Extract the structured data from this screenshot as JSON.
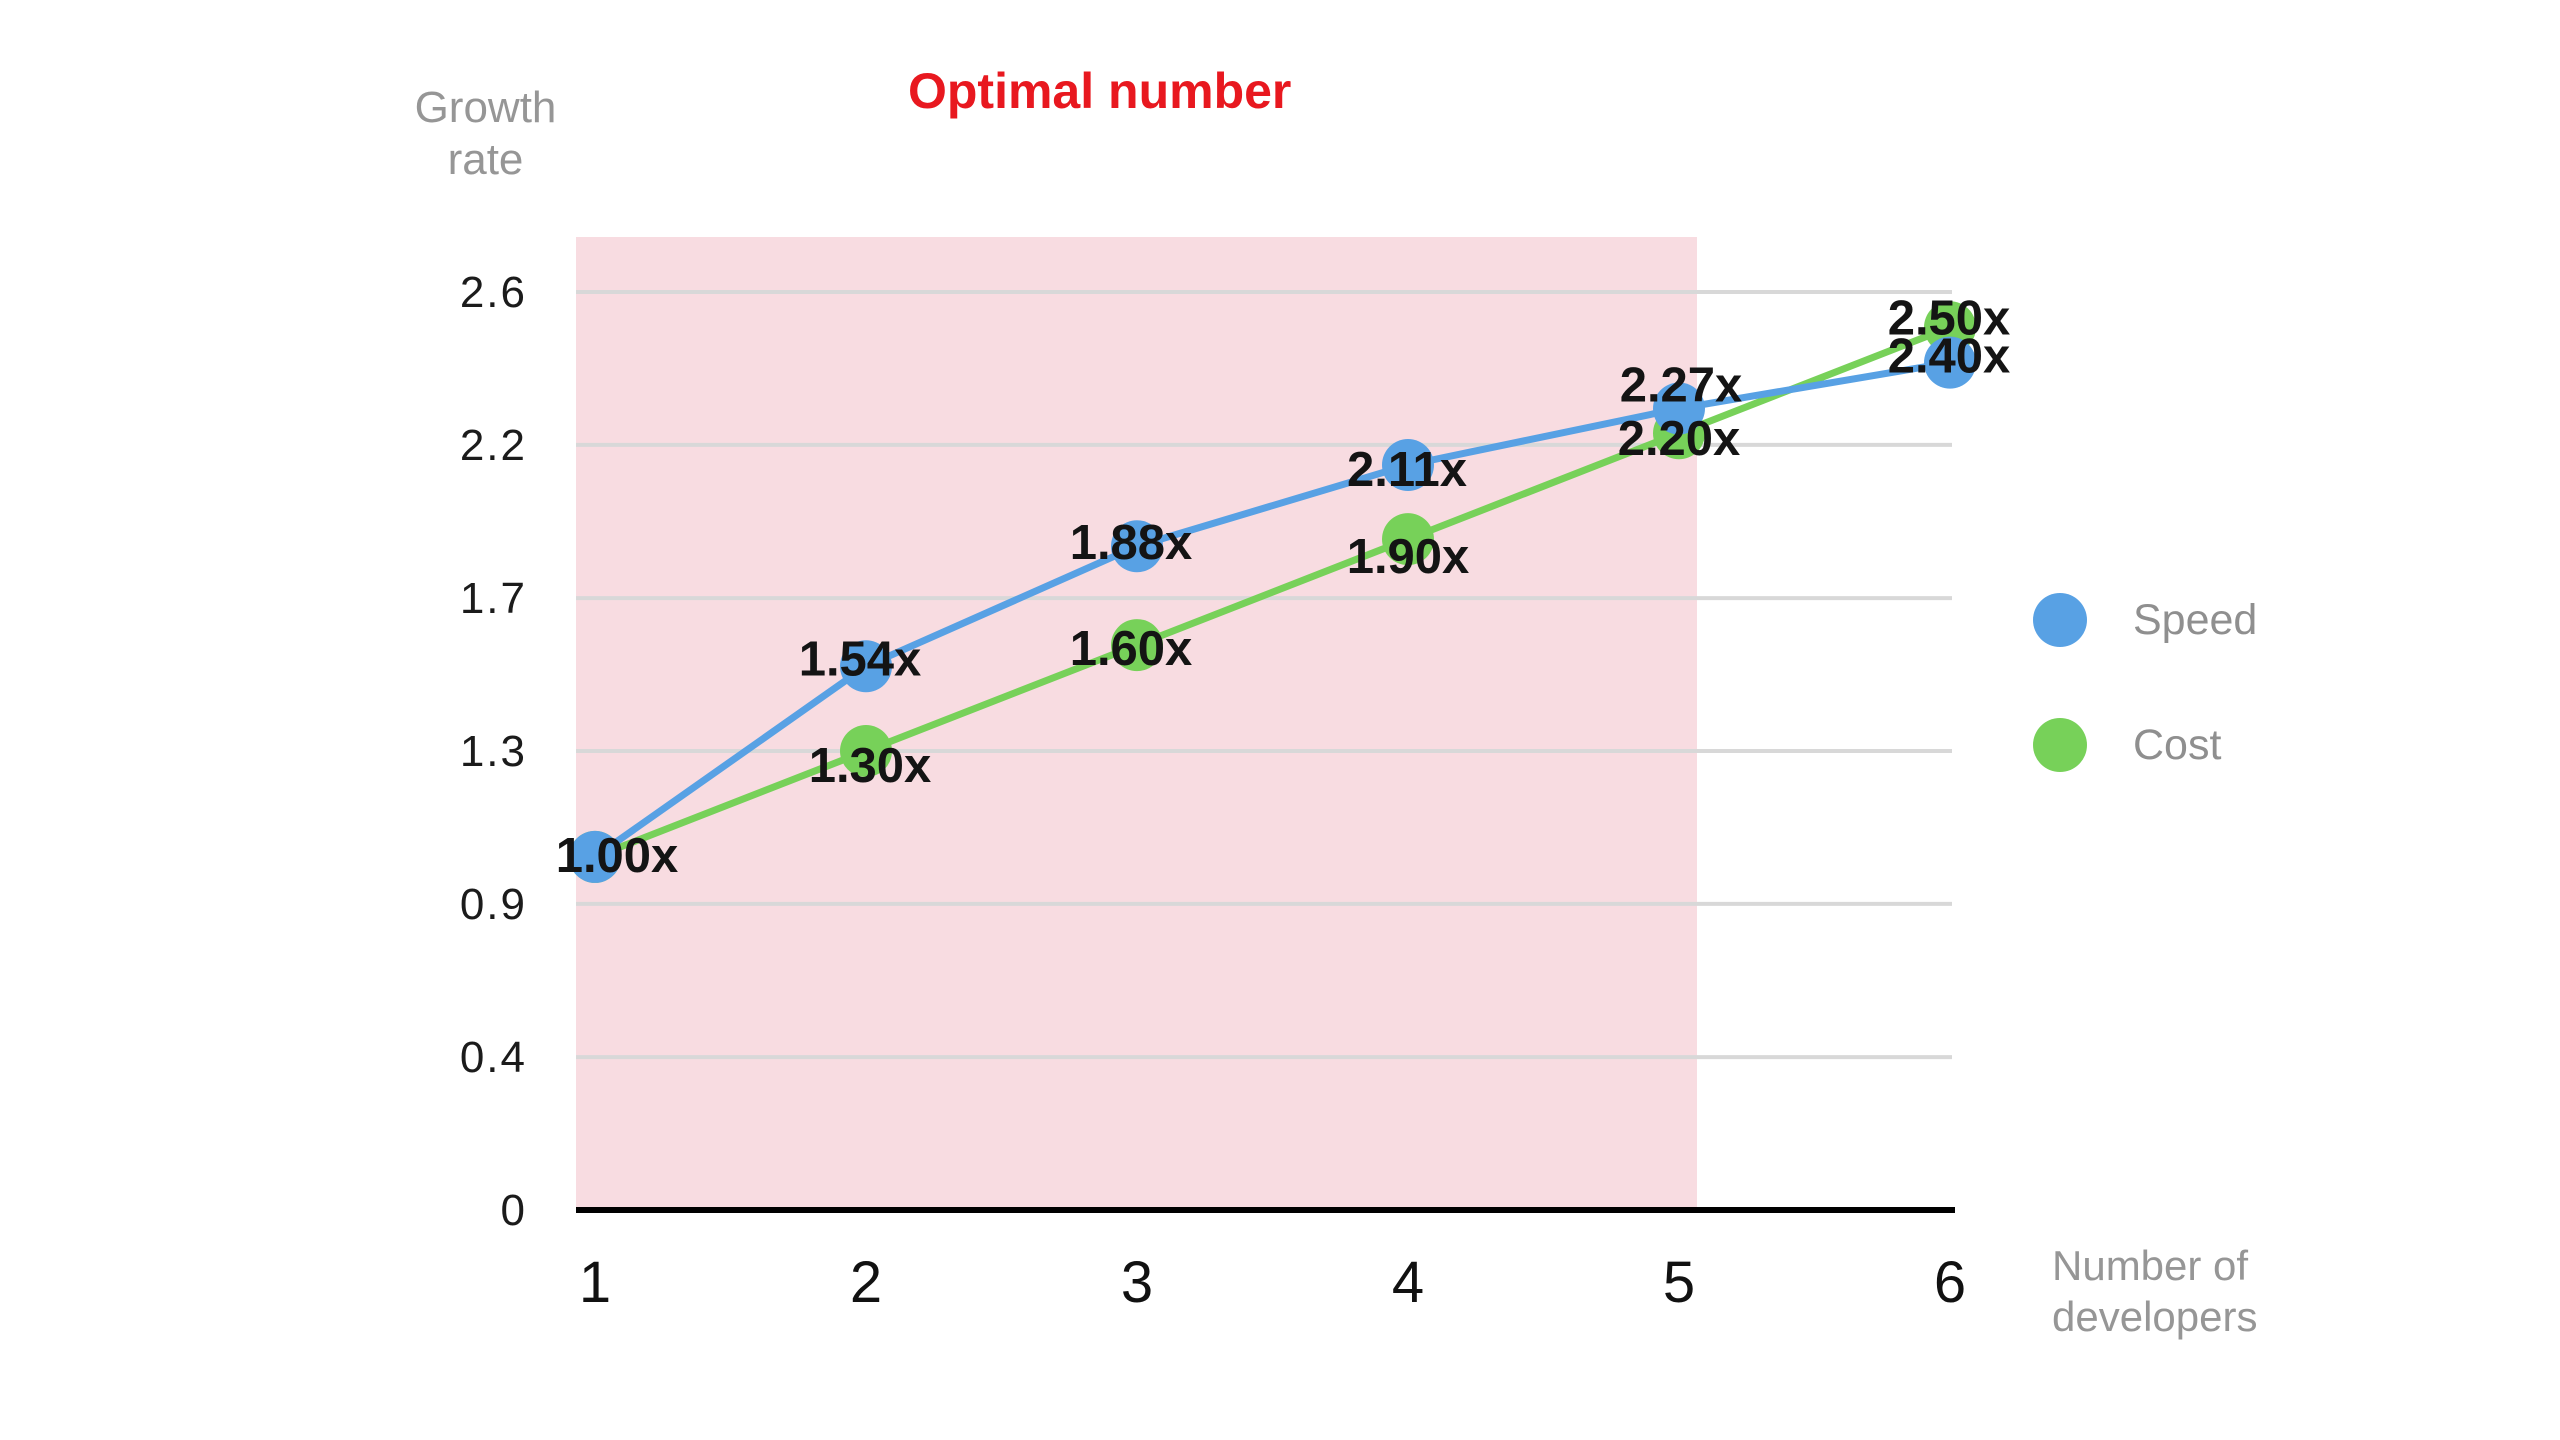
{
  "title": {
    "text": "Optimal number",
    "color": "#e8181f"
  },
  "y_axis_title": {
    "line1": "Growth",
    "line2": "rate"
  },
  "x_axis_title": {
    "line1": "Number of",
    "line2": "developers"
  },
  "legend": [
    {
      "name": "Speed",
      "color": "#58a1e4"
    },
    {
      "name": "Cost",
      "color": "#77d159"
    }
  ],
  "colors": {
    "grid": "#d8d8d8",
    "axis": "#000000",
    "point_label": "#141414",
    "shade": "#f8dce1"
  },
  "chart_data": {
    "type": "line",
    "title": "Optimal number",
    "xlabel": "Number of developers",
    "ylabel": "Growth rate",
    "x": [
      1,
      2,
      3,
      4,
      5,
      6
    ],
    "x_tick_labels": [
      "1",
      "2",
      "3",
      "4",
      "5",
      "6"
    ],
    "xlim": [
      1,
      6
    ],
    "ylim": [
      0,
      2.6
    ],
    "y_ticks": [
      {
        "value": 0,
        "label": "0"
      },
      {
        "value": 0.433,
        "label": "0.4"
      },
      {
        "value": 0.867,
        "label": "0.9"
      },
      {
        "value": 1.3,
        "label": "1.3"
      },
      {
        "value": 1.733,
        "label": "1.7"
      },
      {
        "value": 2.167,
        "label": "2.2"
      },
      {
        "value": 2.6,
        "label": "2.6"
      }
    ],
    "grid": "horizontal",
    "legend_position": "right",
    "shaded_region": {
      "label": "Optimal number",
      "x_to": 5,
      "color": "#f8dce1"
    },
    "series": [
      {
        "name": "Cost",
        "color": "#77d159",
        "values": [
          1.0,
          1.3,
          1.6,
          1.9,
          2.2,
          2.5
        ],
        "point_labels": [
          "",
          "1.30x",
          "1.60x",
          "1.90x",
          "2.20x",
          "2.50x"
        ],
        "label_offsets": [
          [
            0,
            0
          ],
          [
            4,
            14
          ],
          [
            -6,
            3
          ],
          [
            0,
            17
          ],
          [
            0,
            5
          ],
          [
            -1,
            -10
          ]
        ]
      },
      {
        "name": "Speed",
        "color": "#58a1e4",
        "values": [
          1.0,
          1.54,
          1.88,
          2.11,
          2.27,
          2.4
        ],
        "point_labels": [
          "1.00x",
          "1.54x",
          "1.88x",
          "2.11x",
          "2.27x",
          "2.40x"
        ],
        "label_offsets": [
          [
            22,
            -2
          ],
          [
            -6,
            -8
          ],
          [
            -6,
            -4
          ],
          [
            -1,
            4
          ],
          [
            2,
            -24
          ],
          [
            -1,
            -7
          ]
        ]
      }
    ]
  }
}
